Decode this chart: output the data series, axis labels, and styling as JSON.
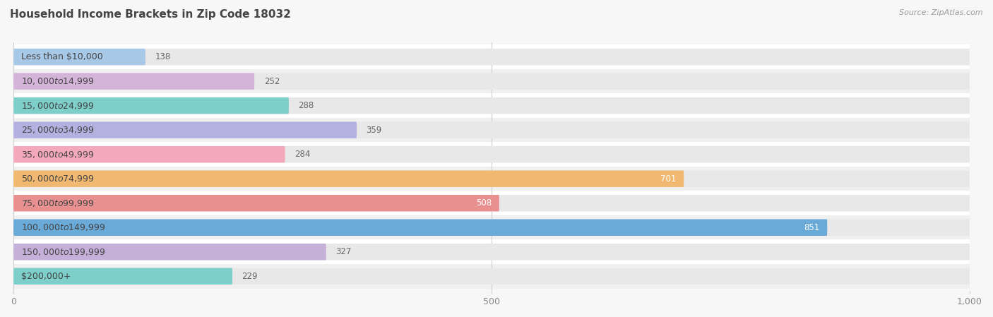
{
  "title": "Household Income Brackets in Zip Code 18032",
  "source": "Source: ZipAtlas.com",
  "categories": [
    "Less than $10,000",
    "$10,000 to $14,999",
    "$15,000 to $24,999",
    "$25,000 to $34,999",
    "$35,000 to $49,999",
    "$50,000 to $74,999",
    "$75,000 to $99,999",
    "$100,000 to $149,999",
    "$150,000 to $199,999",
    "$200,000+"
  ],
  "values": [
    138,
    252,
    288,
    359,
    284,
    701,
    508,
    851,
    327,
    229
  ],
  "bar_colors": [
    "#a8c8e8",
    "#d4b4d8",
    "#7ececa",
    "#b4b0e0",
    "#f4a8bc",
    "#f0b870",
    "#e89090",
    "#6aaad8",
    "#c4b0d8",
    "#7ececa"
  ],
  "xlim": [
    0,
    1000
  ],
  "xticks": [
    0,
    500,
    1000
  ],
  "xtick_labels": [
    "0",
    "500",
    "1,000"
  ],
  "bg_color": "#f7f7f7",
  "pill_color": "#e8e8e8",
  "bar_height": 0.68,
  "value_white_threshold": 500,
  "title_fontsize": 11,
  "label_fontsize": 9,
  "value_fontsize": 8.5
}
